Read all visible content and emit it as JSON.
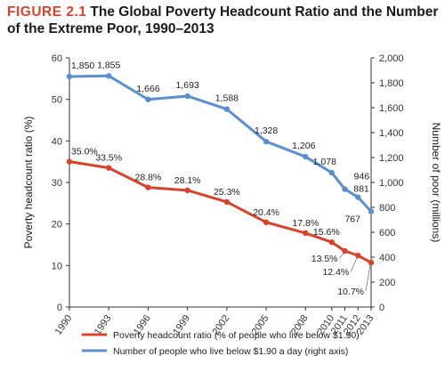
{
  "figure": {
    "label": "FIGURE 2.1",
    "title": "The Global Poverty Headcount Ratio and the Number of the Extreme Poor, 1990–2013"
  },
  "colors": {
    "ratio_series": "#d9432b",
    "poor_series": "#5b8fcf",
    "label_color": "#d9432b"
  },
  "chart_data": {
    "type": "line",
    "x": [
      "1990",
      "1993",
      "1996",
      "1999",
      "2002",
      "2005",
      "2008",
      "2010",
      "2011",
      "2012",
      "2013"
    ],
    "ylabel_left": "Poverty headcount ratio (%)",
    "ylabel_right": "Number of poor (millions)",
    "ylim_left": [
      0,
      60
    ],
    "ylim_right": [
      0,
      2000
    ],
    "yticks_left": [
      "0",
      "10",
      "20",
      "30",
      "40",
      "50",
      "60"
    ],
    "yticks_right": [
      "0",
      "200",
      "400",
      "600",
      "800",
      "1,000",
      "1,200",
      "1,400",
      "1,600",
      "1,800",
      "2,000"
    ],
    "legend_position": "bottom",
    "series": [
      {
        "name": "Poverty headcount ratio (% of people who live below $1.90)",
        "axis": "left",
        "values": [
          35.0,
          33.5,
          28.8,
          28.1,
          25.3,
          20.4,
          17.8,
          15.6,
          13.5,
          12.4,
          10.7
        ],
        "labels": [
          "35.0%",
          "33.5%",
          "28.8%",
          "28.1%",
          "25.3%",
          "20.4%",
          "17.8%",
          "15.6%",
          "13.5%",
          "12.4%",
          "10.7%"
        ]
      },
      {
        "name": "Number of people who live below $1.90 a day (right axis)",
        "axis": "right",
        "values": [
          1850,
          1855,
          1666,
          1693,
          1588,
          1328,
          1206,
          1078,
          946,
          881,
          767
        ],
        "labels": [
          "1,850",
          "1,855",
          "1,666",
          "1,693",
          "1,588",
          "1,328",
          "1,206",
          "1,078",
          "946",
          "881",
          "767"
        ]
      }
    ]
  }
}
